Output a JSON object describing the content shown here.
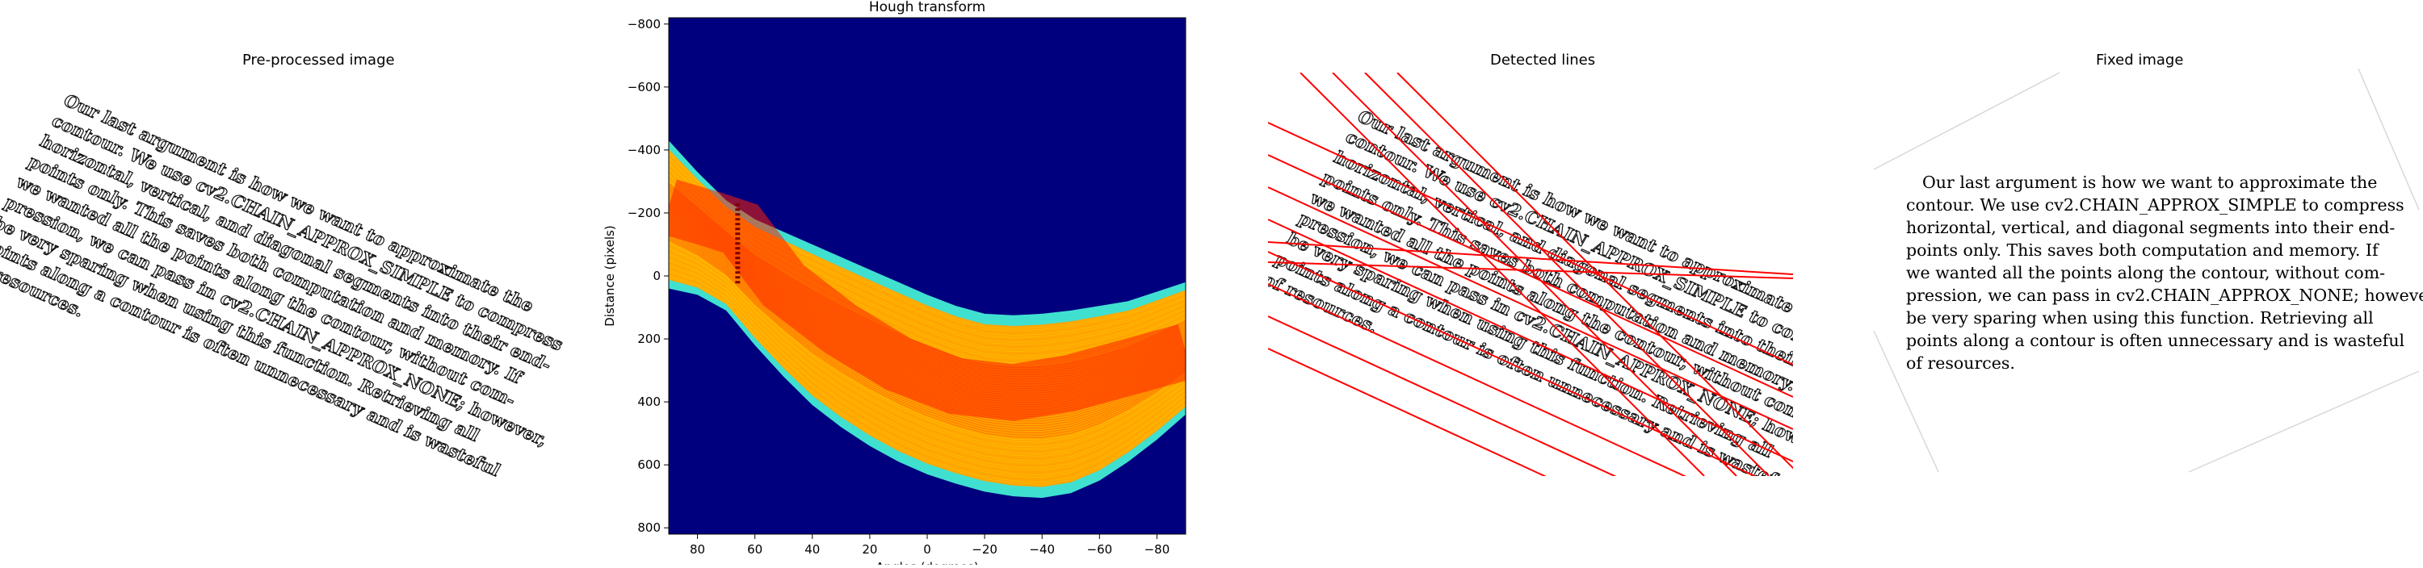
{
  "panels": {
    "preprocessed": {
      "title": "Pre-processed image"
    },
    "hough": {
      "title": "Hough transform"
    },
    "detected": {
      "title": "Detected lines"
    },
    "fixed": {
      "title": "Fixed image"
    }
  },
  "document_lines": [
    "Our last argument is how we want to approximate the",
    "contour.  We use cv2.CHAIN_APPROX_SIMPLE to compress",
    "horizontal, vertical, and diagonal segments into their end-",
    "points only.  This saves both computation and memory.  If",
    "we wanted all the points along the contour, without com-",
    "pression, we can pass in cv2.CHAIN_APPROX_NONE; however,",
    "be very sparing when using this function.  Retrieving all",
    "points along a contour is often unnecessary and is wasteful",
    "of resources."
  ],
  "chart_data": {
    "type": "heatmap",
    "title": "Hough transform",
    "xlabel": "Angles (degrees)",
    "ylabel": "Distance (pixels)",
    "xlim": [
      90,
      -90
    ],
    "ylim": [
      -820,
      820
    ],
    "x_ticks": [
      80,
      60,
      40,
      20,
      0,
      -20,
      -40,
      -60,
      -80
    ],
    "y_ticks": [
      -800,
      -600,
      -400,
      -200,
      0,
      200,
      400,
      600,
      800
    ],
    "colormap": "jet",
    "background_color": "#00007f",
    "grid": false,
    "envelope_upper": [
      {
        "x": 90,
        "y": -430
      },
      {
        "x": 80,
        "y": -330
      },
      {
        "x": 70,
        "y": -240
      },
      {
        "x": 60,
        "y": -180
      },
      {
        "x": 50,
        "y": -140
      },
      {
        "x": 40,
        "y": -100
      },
      {
        "x": 30,
        "y": -60
      },
      {
        "x": 20,
        "y": -20
      },
      {
        "x": 10,
        "y": 20
      },
      {
        "x": 0,
        "y": 60
      },
      {
        "x": -10,
        "y": 95
      },
      {
        "x": -20,
        "y": 120
      },
      {
        "x": -30,
        "y": 125
      },
      {
        "x": -40,
        "y": 120
      },
      {
        "x": -50,
        "y": 110
      },
      {
        "x": -60,
        "y": 95
      },
      {
        "x": -70,
        "y": 80
      },
      {
        "x": -80,
        "y": 50
      },
      {
        "x": -90,
        "y": 20
      }
    ],
    "envelope_lower": [
      {
        "x": 90,
        "y": 40
      },
      {
        "x": 80,
        "y": 60
      },
      {
        "x": 70,
        "y": 110
      },
      {
        "x": 60,
        "y": 220
      },
      {
        "x": 50,
        "y": 320
      },
      {
        "x": 40,
        "y": 410
      },
      {
        "x": 30,
        "y": 480
      },
      {
        "x": 20,
        "y": 540
      },
      {
        "x": 10,
        "y": 590
      },
      {
        "x": 0,
        "y": 630
      },
      {
        "x": -10,
        "y": 660
      },
      {
        "x": -20,
        "y": 685
      },
      {
        "x": -30,
        "y": 700
      },
      {
        "x": -40,
        "y": 705
      },
      {
        "x": -50,
        "y": 690
      },
      {
        "x": -60,
        "y": 650
      },
      {
        "x": -70,
        "y": 590
      },
      {
        "x": -80,
        "y": 520
      },
      {
        "x": -90,
        "y": 440
      }
    ],
    "hot_band": [
      {
        "x": 90,
        "y": -220
      },
      {
        "x": 75,
        "y": -180
      },
      {
        "x": 65,
        "y": -150
      },
      {
        "x": 50,
        "y": 30
      },
      {
        "x": 30,
        "y": 170
      },
      {
        "x": 10,
        "y": 280
      },
      {
        "x": -10,
        "y": 350
      },
      {
        "x": -30,
        "y": 370
      },
      {
        "x": -50,
        "y": 340
      },
      {
        "x": -70,
        "y": 290
      },
      {
        "x": -90,
        "y": 240
      }
    ],
    "peak_angle_deg": 66
  },
  "detected_lines_count": 14,
  "colors": {
    "hough_background": "#00007f",
    "detected_line": "#ff0000",
    "envelope_edge": "#40e0d0",
    "band_warm": "#ffa500",
    "band_hot": "#ff2000",
    "band_yellow": "#ffe000"
  }
}
